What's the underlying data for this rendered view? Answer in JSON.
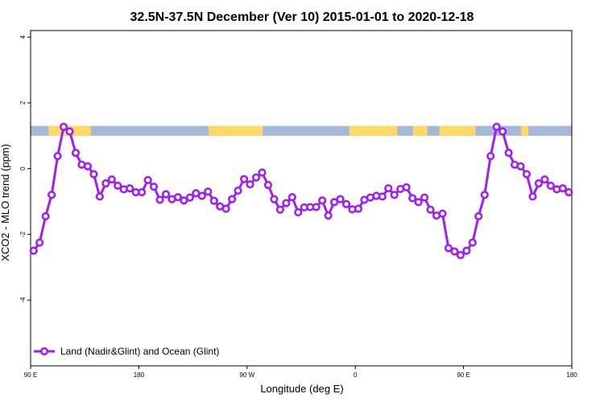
{
  "chart_data": {
    "type": "line",
    "title": "32.5N-37.5N December (Ver 10)   2015-01-01 to 2020-12-18",
    "xlabel": "Longitude (deg E)",
    "ylabel": "XCO2 - MLO trend (ppm)",
    "xlim": [
      90,
      540
    ],
    "ylim": [
      -6,
      4.2
    ],
    "x_ticks": [
      {
        "value": 90,
        "label": "90 E"
      },
      {
        "value": 180,
        "label": "180"
      },
      {
        "value": 270,
        "label": "90 W"
      },
      {
        "value": 360,
        "label": "0"
      },
      {
        "value": 450,
        "label": "90 E"
      },
      {
        "value": 540,
        "label": "180"
      }
    ],
    "y_ticks": [
      {
        "value": 4,
        "label": "4"
      },
      {
        "value": 2,
        "label": "2"
      },
      {
        "value": 0,
        "label": "0"
      },
      {
        "value": -2,
        "label": "-2"
      },
      {
        "value": -4,
        "label": "-4"
      }
    ],
    "legend": {
      "label": "Land (Nadir&Glint) and Ocean (Glint)",
      "position": "bottom-left"
    },
    "colors": {
      "series": "#a020f0",
      "land": "#ffd966",
      "ocean": "#a4b8d8"
    },
    "land_ocean_band": {
      "y_range": [
        1.0,
        1.3
      ],
      "land_segments": [
        [
          105,
          140
        ],
        [
          238,
          283
        ],
        [
          355,
          395
        ],
        [
          408,
          420
        ],
        [
          430,
          460
        ],
        [
          498,
          504
        ]
      ]
    },
    "series": [
      {
        "name": "Land (Nadir&Glint) and Ocean (Glint)",
        "x": [
          92.5,
          97.5,
          102.5,
          107.5,
          112.5,
          117.5,
          122.5,
          127.5,
          132.5,
          137.5,
          142.5,
          147.5,
          152.5,
          157.5,
          162.5,
          167.5,
          172.5,
          177.5,
          182.5,
          187.5,
          192.5,
          197.5,
          202.5,
          207.5,
          212.5,
          217.5,
          222.5,
          227.5,
          232.5,
          237.5,
          242.5,
          247.5,
          252.5,
          257.5,
          262.5,
          267.5,
          272.5,
          277.5,
          282.5,
          287.5,
          292.5,
          297.5,
          302.5,
          307.5,
          312.5,
          317.5,
          322.5,
          327.5,
          332.5,
          337.5,
          342.5,
          347.5,
          352.5,
          357.5,
          362.5,
          367.5,
          372.5,
          377.5,
          382.5,
          387.5,
          392.5,
          397.5,
          402.5,
          407.5,
          412.5,
          417.5,
          422.5,
          427.5,
          432.5,
          437.5,
          442.5,
          447.5,
          452.5,
          457.5,
          462.5,
          467.5,
          472.5,
          477.5,
          482.5,
          487.5,
          492.5,
          497.5,
          502.5,
          507.5,
          512.5,
          517.5,
          522.5,
          527.5,
          532.5,
          537.5
        ],
        "values": [
          -2.5,
          -2.25,
          -1.45,
          -0.8,
          0.38,
          1.27,
          1.13,
          0.48,
          0.12,
          0.07,
          -0.17,
          -0.85,
          -0.45,
          -0.33,
          -0.52,
          -0.63,
          -0.6,
          -0.72,
          -0.72,
          -0.35,
          -0.55,
          -0.95,
          -0.78,
          -0.93,
          -0.87,
          -0.97,
          -0.88,
          -0.75,
          -0.83,
          -0.7,
          -0.98,
          -1.15,
          -1.22,
          -0.93,
          -0.67,
          -0.32,
          -0.48,
          -0.27,
          -0.12,
          -0.5,
          -0.93,
          -1.25,
          -1.05,
          -0.87,
          -1.33,
          -1.18,
          -1.17,
          -1.17,
          -0.97,
          -1.43,
          -1.02,
          -0.93,
          -1.08,
          -1.24,
          -1.22,
          -0.95,
          -0.88,
          -0.83,
          -0.85,
          -0.6,
          -0.8,
          -0.62,
          -0.57,
          -0.9,
          -1.02,
          -0.88,
          -1.25,
          -1.43,
          -1.37,
          -2.42,
          -2.52,
          -2.63,
          -2.5,
          -2.25,
          -1.45,
          -0.8,
          0.38,
          1.27,
          1.13,
          0.48,
          0.12,
          0.07,
          -0.17,
          -0.85,
          -0.45,
          -0.33,
          -0.52,
          -0.63,
          -0.6,
          -0.72
        ]
      }
    ]
  }
}
